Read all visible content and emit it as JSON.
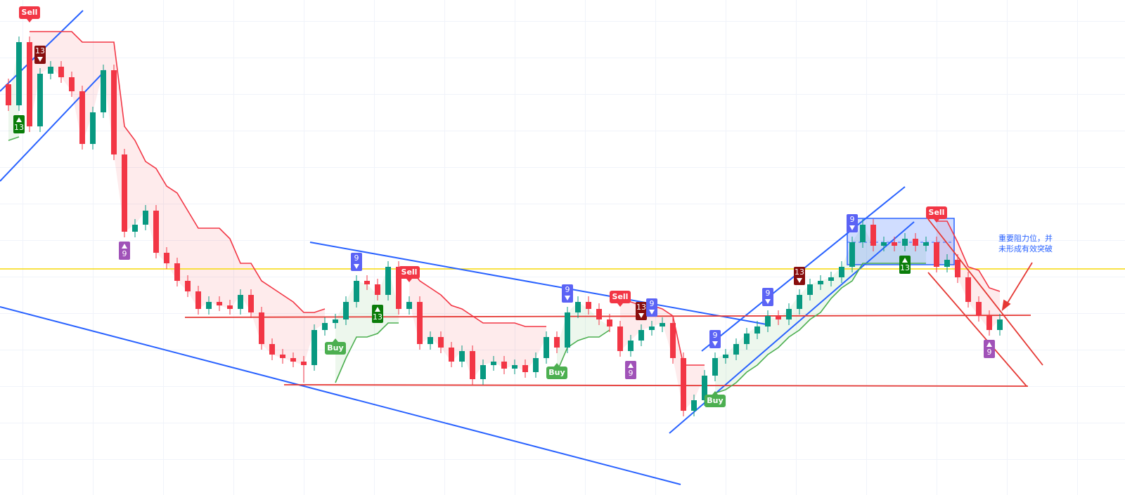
{
  "chart_data": {
    "type": "candlestick",
    "ylim": [
      0,
      705
    ],
    "up_color": "#089981",
    "down_color": "#f23645",
    "candles": [
      [
        585,
        593,
        547,
        555
      ],
      [
        555,
        653,
        547,
        645
      ],
      [
        645,
        653,
        517,
        525
      ],
      [
        525,
        608,
        517,
        600
      ],
      [
        600,
        618,
        592,
        610
      ],
      [
        610,
        618,
        587,
        595
      ],
      [
        595,
        603,
        567,
        575
      ],
      [
        575,
        583,
        492,
        500
      ],
      [
        500,
        553,
        492,
        545
      ],
      [
        545,
        613,
        537,
        605
      ],
      [
        605,
        613,
        477,
        485
      ],
      [
        485,
        493,
        367,
        375
      ],
      [
        375,
        393,
        367,
        385
      ],
      [
        385,
        413,
        377,
        405
      ],
      [
        405,
        413,
        337,
        345
      ],
      [
        345,
        353,
        322,
        330
      ],
      [
        330,
        338,
        297,
        305
      ],
      [
        305,
        313,
        282,
        290
      ],
      [
        290,
        298,
        257,
        265
      ],
      [
        265,
        283,
        257,
        275
      ],
      [
        275,
        283,
        262,
        270
      ],
      [
        270,
        278,
        257,
        265
      ],
      [
        265,
        293,
        257,
        285
      ],
      [
        285,
        293,
        252,
        260
      ],
      [
        260,
        268,
        207,
        215
      ],
      [
        215,
        223,
        192,
        200
      ],
      [
        200,
        208,
        187,
        195
      ],
      [
        195,
        203,
        182,
        190
      ],
      [
        190,
        198,
        160,
        185
      ],
      [
        185,
        243,
        177,
        235
      ],
      [
        235,
        253,
        227,
        245
      ],
      [
        245,
        258,
        237,
        250
      ],
      [
        250,
        283,
        242,
        275
      ],
      [
        275,
        313,
        267,
        305
      ],
      [
        305,
        313,
        292,
        300
      ],
      [
        300,
        308,
        277,
        285
      ],
      [
        285,
        333,
        277,
        325
      ],
      [
        325,
        333,
        257,
        265
      ],
      [
        265,
        283,
        257,
        275
      ],
      [
        275,
        283,
        207,
        215
      ],
      [
        215,
        233,
        207,
        225
      ],
      [
        225,
        233,
        202,
        210
      ],
      [
        210,
        218,
        182,
        190
      ],
      [
        190,
        213,
        182,
        205
      ],
      [
        205,
        213,
        157,
        165
      ],
      [
        165,
        193,
        157,
        185
      ],
      [
        185,
        198,
        177,
        190
      ],
      [
        190,
        198,
        172,
        180
      ],
      [
        180,
        193,
        172,
        185
      ],
      [
        185,
        193,
        167,
        175
      ],
      [
        175,
        203,
        167,
        195
      ],
      [
        195,
        233,
        187,
        225
      ],
      [
        225,
        233,
        202,
        210
      ],
      [
        210,
        268,
        202,
        260
      ],
      [
        260,
        283,
        252,
        275
      ],
      [
        275,
        283,
        257,
        265
      ],
      [
        265,
        273,
        242,
        250
      ],
      [
        250,
        258,
        232,
        240
      ],
      [
        240,
        248,
        197,
        205
      ],
      [
        205,
        228,
        197,
        220
      ],
      [
        220,
        243,
        212,
        235
      ],
      [
        235,
        248,
        227,
        240
      ],
      [
        240,
        253,
        232,
        245
      ],
      [
        245,
        253,
        187,
        195
      ],
      [
        195,
        203,
        112,
        120
      ],
      [
        120,
        143,
        112,
        135
      ],
      [
        135,
        178,
        127,
        170
      ],
      [
        170,
        203,
        162,
        195
      ],
      [
        195,
        208,
        187,
        200
      ],
      [
        200,
        223,
        192,
        215
      ],
      [
        215,
        238,
        207,
        230
      ],
      [
        230,
        248,
        222,
        240
      ],
      [
        240,
        263,
        232,
        255
      ],
      [
        255,
        263,
        242,
        250
      ],
      [
        250,
        273,
        242,
        265
      ],
      [
        265,
        293,
        257,
        285
      ],
      [
        285,
        308,
        277,
        300
      ],
      [
        300,
        313,
        292,
        305
      ],
      [
        305,
        318,
        297,
        310
      ],
      [
        310,
        333,
        302,
        325
      ],
      [
        325,
        368,
        317,
        360
      ],
      [
        360,
        393,
        352,
        385
      ],
      [
        385,
        393,
        347,
        355
      ],
      [
        355,
        368,
        347,
        360
      ],
      [
        360,
        368,
        347,
        355
      ],
      [
        355,
        373,
        347,
        365
      ],
      [
        365,
        373,
        347,
        355
      ],
      [
        355,
        368,
        347,
        360
      ],
      [
        360,
        368,
        317,
        325
      ],
      [
        325,
        343,
        317,
        335
      ],
      [
        335,
        343,
        302,
        310
      ],
      [
        310,
        318,
        267,
        275
      ],
      [
        275,
        283,
        247,
        255
      ],
      [
        255,
        263,
        227,
        235
      ],
      [
        235,
        258,
        227,
        250
      ]
    ],
    "supertrend": [
      {
        "color": "#4caf50",
        "fill": "rgba(76,175,80,0.10)",
        "values": [
          505,
          510,
          null,
          null,
          null,
          null,
          null,
          null,
          null,
          null,
          null,
          null,
          null,
          null,
          null,
          null,
          null,
          null,
          null,
          null,
          null,
          null,
          null,
          null,
          null,
          null,
          null,
          null,
          null,
          null,
          null,
          160,
          195,
          225,
          225,
          230,
          245,
          245,
          null,
          null,
          null,
          null,
          null,
          null,
          null,
          null,
          null,
          null,
          null,
          null,
          null,
          null,
          175,
          210,
          220,
          225,
          225,
          235,
          null,
          null,
          null,
          null,
          null,
          null,
          null,
          null,
          null,
          145,
          150,
          160,
          175,
          185,
          200,
          210,
          225,
          235,
          250,
          260,
          280,
          295,
          305,
          330,
          330,
          330,
          330,
          330,
          330,
          330,
          null,
          null,
          null,
          null,
          null,
          null,
          null
        ]
      },
      {
        "color": "#f23645",
        "fill": "rgba(242,54,69,0.10)",
        "values": [
          null,
          null,
          660,
          660,
          660,
          660,
          660,
          645,
          645,
          645,
          645,
          525,
          505,
          475,
          465,
          440,
          430,
          405,
          380,
          380,
          380,
          365,
          330,
          330,
          305,
          295,
          285,
          275,
          260,
          260,
          265,
          null,
          null,
          null,
          null,
          null,
          null,
          null,
          325,
          305,
          295,
          285,
          270,
          265,
          255,
          245,
          245,
          245,
          245,
          240,
          240,
          240,
          null,
          null,
          null,
          null,
          null,
          null,
          275,
          275,
          270,
          270,
          265,
          255,
          185,
          185,
          185,
          null,
          null,
          null,
          null,
          null,
          null,
          null,
          null,
          null,
          null,
          null,
          null,
          null,
          null,
          null,
          null,
          null,
          null,
          null,
          null,
          null,
          390,
          390,
          360,
          325,
          320,
          295,
          290
        ]
      }
    ],
    "signals": [
      {
        "index": 2,
        "label": "Sell",
        "place": "above",
        "color": "#f23645"
      },
      {
        "index": 38,
        "label": "Sell",
        "place": "above",
        "color": "#f23645"
      },
      {
        "index": 58,
        "label": "Sell",
        "place": "above",
        "color": "#f23645"
      },
      {
        "index": 88,
        "label": "Sell",
        "place": "above",
        "color": "#f23645"
      },
      {
        "index": 31,
        "label": "Buy",
        "place": "below",
        "color": "#4caf50"
      },
      {
        "index": 52,
        "label": "Buy",
        "place": "below",
        "color": "#4caf50"
      },
      {
        "index": 67,
        "label": "Buy",
        "place": "below",
        "color": "#4caf50"
      }
    ],
    "counts": [
      {
        "index": 3,
        "label": 13,
        "place": "above",
        "color": "#880e0e"
      },
      {
        "index": 1,
        "label": 13,
        "place": "below",
        "color": "#0a7d0a"
      },
      {
        "index": 11,
        "label": 9,
        "place": "below",
        "color": "#a052b8"
      },
      {
        "index": 33,
        "label": 9,
        "place": "above",
        "color": "#5b63f5"
      },
      {
        "index": 35,
        "label": 13,
        "place": "below",
        "color": "#0a7d0a"
      },
      {
        "index": 53,
        "label": 9,
        "place": "above",
        "color": "#5b63f5"
      },
      {
        "index": 59,
        "label": 9,
        "place": "below",
        "color": "#a052b8"
      },
      {
        "index": 60,
        "label": 13,
        "place": "above",
        "color": "#880e0e"
      },
      {
        "index": 61,
        "label": 9,
        "place": "above",
        "color": "#5b63f5"
      },
      {
        "index": 67,
        "label": 9,
        "place": "above",
        "color": "#5b63f5"
      },
      {
        "index": 72,
        "label": 9,
        "place": "above",
        "color": "#5b63f5"
      },
      {
        "index": 75,
        "label": 13,
        "place": "above",
        "color": "#880e0e"
      },
      {
        "index": 80,
        "label": 9,
        "place": "above",
        "color": "#5b63f5"
      },
      {
        "index": 85,
        "label": 13,
        "place": "below",
        "color": "#0a7d0a"
      },
      {
        "index": 93,
        "label": 9,
        "place": "below",
        "color": "#a052b8"
      }
    ],
    "annotation": [
      "重要阻力位，并",
      "未形成有效突破"
    ]
  }
}
